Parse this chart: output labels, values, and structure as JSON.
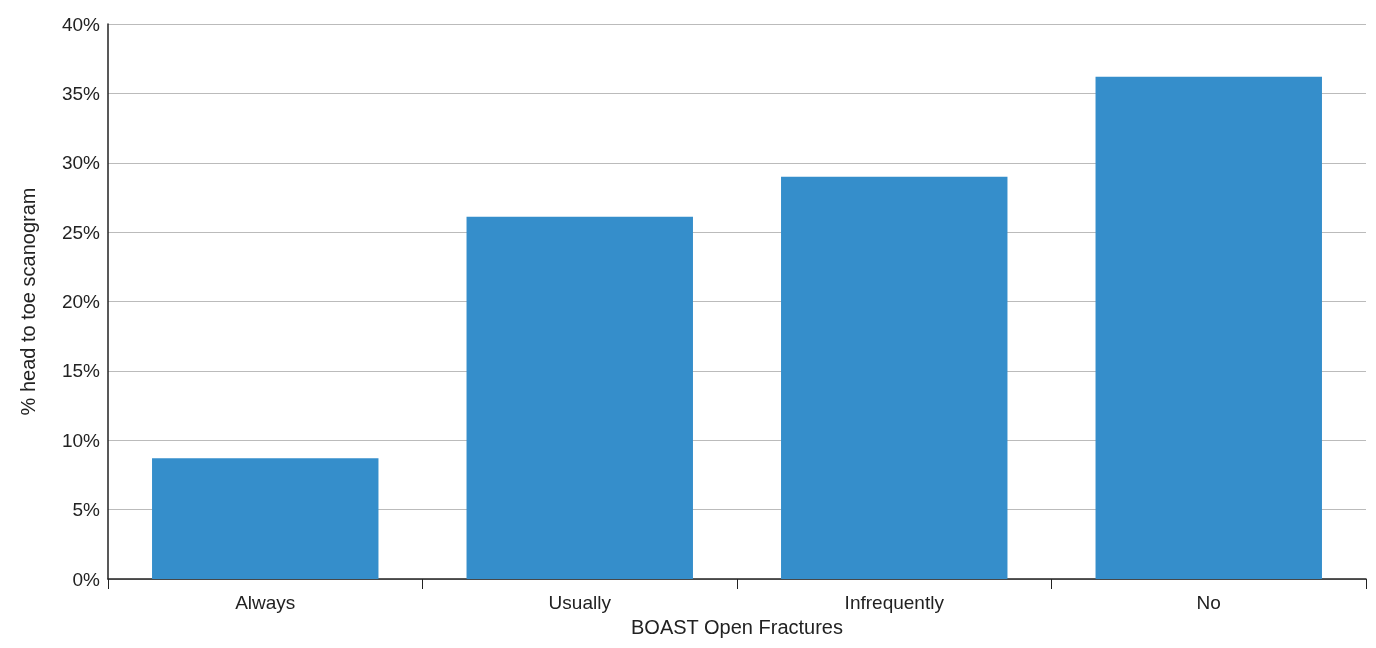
{
  "chart_data": {
    "type": "bar",
    "xlabel": "BOAST Open Fractures",
    "ylabel": "% head to toe scanogram",
    "categories": [
      "Always",
      "Usually",
      "Infrequently",
      "No"
    ],
    "values": [
      8.7,
      26.1,
      29.0,
      36.2
    ],
    "color": "#358ecb",
    "ylim": [
      0,
      40
    ],
    "yticks": [
      {
        "value": 0,
        "label": "0%"
      },
      {
        "value": 5,
        "label": "5%"
      },
      {
        "value": 10,
        "label": "10%"
      },
      {
        "value": 15,
        "label": "15%"
      },
      {
        "value": 20,
        "label": "20%"
      },
      {
        "value": 25,
        "label": "25%"
      },
      {
        "value": 30,
        "label": "30%"
      },
      {
        "value": 35,
        "label": "35%"
      },
      {
        "value": 40,
        "label": "40%"
      }
    ],
    "grid": "y"
  }
}
